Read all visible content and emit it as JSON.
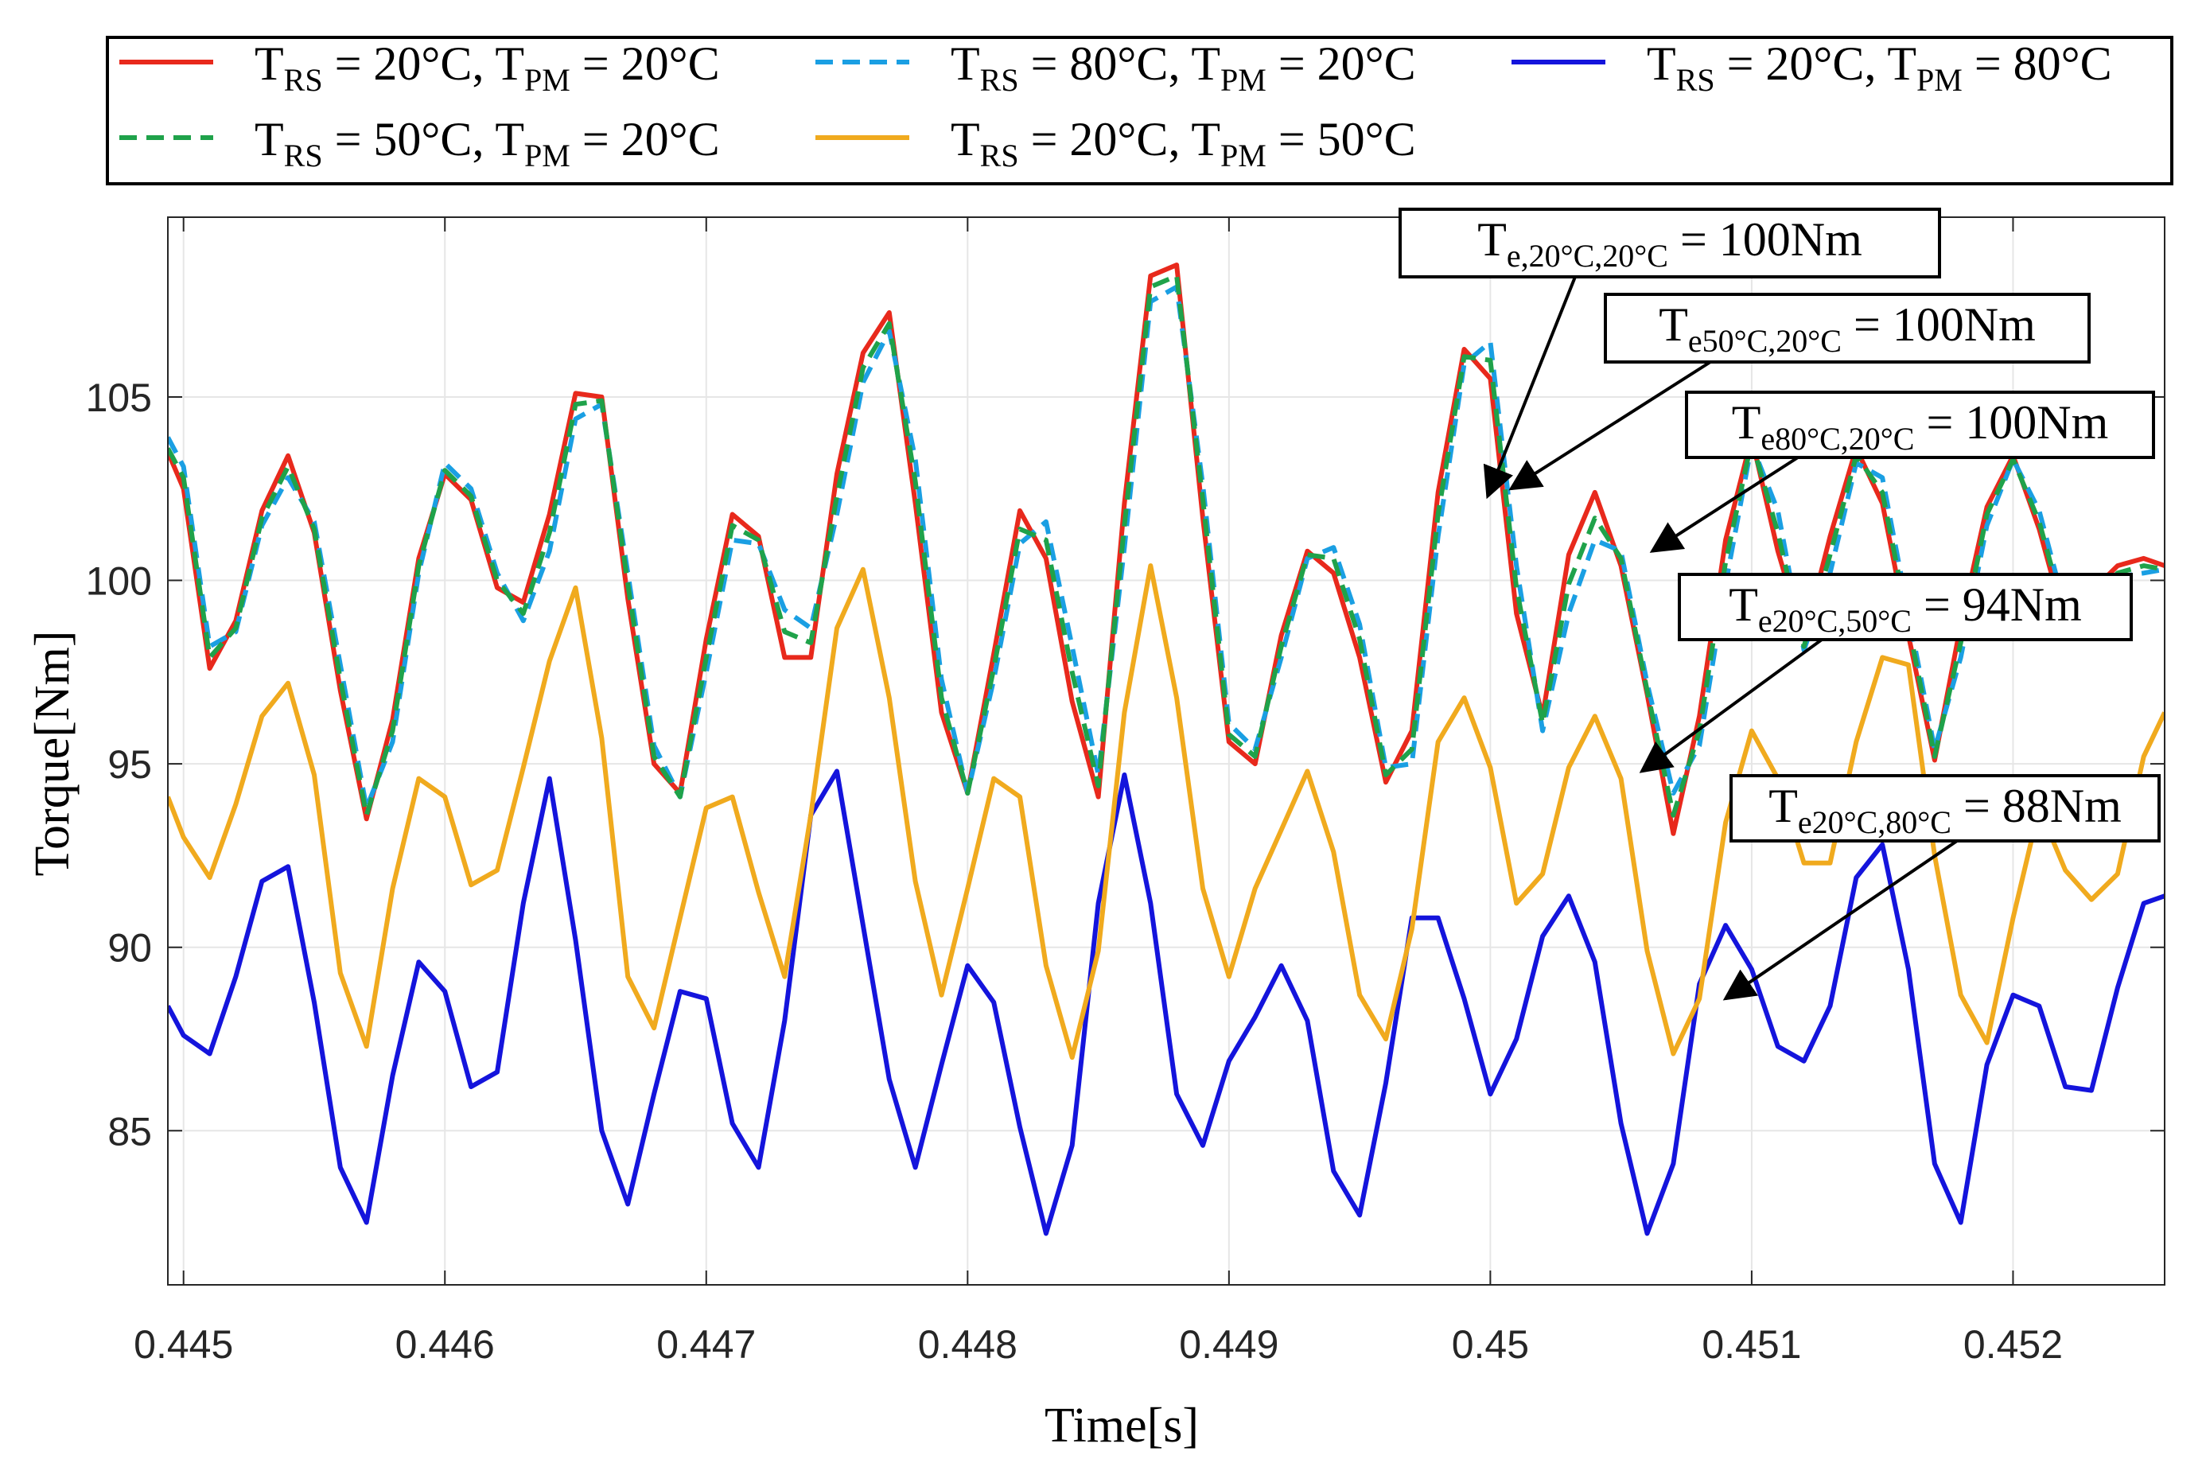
{
  "chart_data": {
    "type": "line",
    "xlabel": "Time[s]",
    "ylabel": "Torque[Nm]",
    "xlim": [
      0.44494,
      0.45258
    ],
    "ylim": [
      80.8,
      109.9
    ],
    "xticks": [
      0.445,
      0.446,
      0.447,
      0.448,
      0.449,
      0.45,
      0.451,
      0.452
    ],
    "xtick_labels": [
      "0.445",
      "0.446",
      "0.447",
      "0.448",
      "0.449",
      "0.45",
      "0.451",
      "0.452"
    ],
    "yticks": [
      85,
      90,
      95,
      100,
      105
    ],
    "ytick_labels": [
      "85",
      "90",
      "95",
      "100",
      "105"
    ],
    "grid": true,
    "legend_position": "top",
    "series": [
      {
        "name": "rs20_pm20",
        "legend": {
          "a": "T",
          "a_sub": "RS",
          "b": " = 20°C, T",
          "b_sub": "PM",
          "c": " = 20°C"
        },
        "color": "#e8291c",
        "dash": "solid",
        "x": [
          0.44494,
          0.445,
          0.4451,
          0.4452,
          0.4453,
          0.4454,
          0.4455,
          0.4456,
          0.4457,
          0.4458,
          0.4459,
          0.446,
          0.4461,
          0.4462,
          0.4463,
          0.4464,
          0.4465,
          0.4466,
          0.4467,
          0.4468,
          0.4469,
          0.447,
          0.4471,
          0.4472,
          0.4473,
          0.4474,
          0.4475,
          0.4476,
          0.4477,
          0.4478,
          0.4479,
          0.448,
          0.4481,
          0.4482,
          0.4483,
          0.4484,
          0.4485,
          0.4486,
          0.4487,
          0.4488,
          0.4489,
          0.449,
          0.4491,
          0.4492,
          0.4493,
          0.4494,
          0.4495,
          0.4496,
          0.4497,
          0.4498,
          0.4499,
          0.45,
          0.4501,
          0.4502,
          0.4503,
          0.4504,
          0.4505,
          0.4506,
          0.4507,
          0.4508,
          0.4509,
          0.451,
          0.4511,
          0.4512,
          0.4513,
          0.4514,
          0.4515,
          0.4516,
          0.4517,
          0.4518,
          0.4519,
          0.452,
          0.4521,
          0.4522,
          0.4523,
          0.4524,
          0.4525,
          0.45258
        ],
        "values": [
          103.5,
          102.5,
          97.6,
          98.9,
          101.9,
          103.4,
          101.3,
          97.0,
          93.5,
          96.2,
          100.6,
          102.9,
          102.2,
          99.8,
          99.4,
          101.8,
          105.1,
          105.0,
          99.5,
          95.0,
          94.2,
          98.4,
          101.8,
          101.2,
          97.9,
          97.9,
          102.9,
          106.2,
          107.3,
          102.1,
          96.4,
          94.2,
          98.0,
          101.9,
          100.6,
          96.7,
          94.1,
          102.1,
          108.3,
          108.6,
          101.7,
          95.6,
          95.0,
          98.5,
          100.8,
          100.2,
          97.9,
          94.5,
          95.9,
          102.4,
          106.3,
          105.5,
          99.1,
          96.3,
          100.7,
          102.4,
          100.4,
          96.9,
          93.1,
          96.3,
          101.1,
          103.9,
          100.8,
          98.4,
          101.2,
          103.6,
          102.1,
          98.5,
          95.1,
          98.8,
          102.0,
          103.4,
          101.4,
          98.8,
          99.7,
          100.4,
          100.6,
          100.4
        ]
      },
      {
        "name": "rs80_pm20",
        "legend": {
          "a": "T",
          "a_sub": "RS",
          "b": " = 80°C, T",
          "b_sub": "PM",
          "c": " = 20°C"
        },
        "color": "#1a9fe3",
        "dash": "dashed",
        "x": [
          0.44494,
          0.445,
          0.4451,
          0.4452,
          0.4453,
          0.4454,
          0.4455,
          0.4456,
          0.4457,
          0.4458,
          0.4459,
          0.446,
          0.4461,
          0.4462,
          0.4463,
          0.4464,
          0.4465,
          0.4466,
          0.4467,
          0.4468,
          0.4469,
          0.447,
          0.4471,
          0.4472,
          0.4473,
          0.4474,
          0.4475,
          0.4476,
          0.4477,
          0.4478,
          0.4479,
          0.448,
          0.4481,
          0.4482,
          0.4483,
          0.4484,
          0.4485,
          0.4486,
          0.4487,
          0.4488,
          0.4489,
          0.449,
          0.4491,
          0.4492,
          0.4493,
          0.4494,
          0.4495,
          0.4496,
          0.4497,
          0.4498,
          0.4499,
          0.45,
          0.4501,
          0.4502,
          0.4503,
          0.4504,
          0.4505,
          0.4506,
          0.4507,
          0.4508,
          0.4509,
          0.451,
          0.4511,
          0.4512,
          0.4513,
          0.4514,
          0.4515,
          0.4516,
          0.4517,
          0.4518,
          0.4519,
          0.452,
          0.4521,
          0.4522,
          0.4523,
          0.4524,
          0.4525,
          0.45258
        ],
        "values": [
          103.9,
          103.1,
          98.2,
          98.6,
          101.5,
          102.8,
          101.6,
          97.7,
          93.8,
          95.6,
          100.2,
          103.2,
          102.5,
          100.2,
          98.9,
          100.8,
          104.4,
          104.8,
          100.2,
          95.5,
          94.1,
          97.5,
          101.1,
          101.0,
          99.2,
          98.7,
          101.8,
          105.4,
          106.8,
          103.3,
          97.3,
          94.2,
          97.3,
          101.0,
          101.6,
          98.2,
          94.7,
          100.9,
          107.6,
          108.0,
          102.6,
          96.1,
          95.4,
          97.9,
          100.6,
          100.9,
          98.8,
          94.9,
          95.0,
          101.2,
          105.9,
          106.5,
          100.4,
          95.9,
          99.1,
          101.1,
          100.8,
          97.2,
          94.2,
          95.5,
          99.9,
          103.7,
          101.9,
          98.1,
          100.2,
          103.2,
          102.8,
          99.1,
          95.4,
          97.9,
          101.5,
          103.3,
          101.9,
          99.2,
          99.4,
          100.1,
          100.2,
          100.3
        ]
      },
      {
        "name": "rs20_pm80",
        "legend": {
          "a": "T",
          "a_sub": "RS",
          "b": " = 20°C, T",
          "b_sub": "PM",
          "c": " = 80°C"
        },
        "color": "#1414dc",
        "dash": "solid",
        "x": [
          0.44494,
          0.445,
          0.4451,
          0.4452,
          0.4453,
          0.4454,
          0.4455,
          0.4456,
          0.4457,
          0.4458,
          0.4459,
          0.446,
          0.4461,
          0.4462,
          0.4463,
          0.4464,
          0.4465,
          0.4466,
          0.4467,
          0.4468,
          0.4469,
          0.447,
          0.4471,
          0.4472,
          0.4473,
          0.4474,
          0.4475,
          0.4476,
          0.4477,
          0.4478,
          0.4479,
          0.448,
          0.4481,
          0.4482,
          0.4483,
          0.4484,
          0.4485,
          0.4486,
          0.4487,
          0.4488,
          0.4489,
          0.449,
          0.4491,
          0.4492,
          0.4493,
          0.4494,
          0.4495,
          0.4496,
          0.4497,
          0.4498,
          0.4499,
          0.45,
          0.4501,
          0.4502,
          0.4503,
          0.4504,
          0.4505,
          0.4506,
          0.4507,
          0.4508,
          0.4509,
          0.451,
          0.4511,
          0.4512,
          0.4513,
          0.4514,
          0.4515,
          0.4516,
          0.4517,
          0.4518,
          0.4519,
          0.452,
          0.4521,
          0.4522,
          0.4523,
          0.4524,
          0.4525,
          0.45258
        ],
        "values": [
          88.4,
          87.6,
          87.1,
          89.2,
          91.8,
          92.2,
          88.5,
          84.0,
          82.5,
          86.5,
          89.6,
          88.8,
          86.2,
          86.6,
          91.2,
          94.6,
          90.2,
          85.0,
          83.0,
          86.0,
          88.8,
          88.6,
          85.2,
          84.0,
          88.0,
          93.6,
          94.8,
          90.6,
          86.4,
          84.0,
          86.8,
          89.5,
          88.5,
          85.1,
          82.2,
          84.6,
          91.2,
          94.7,
          91.2,
          86.0,
          84.6,
          86.9,
          88.1,
          89.5,
          88.0,
          83.9,
          82.7,
          86.3,
          90.8,
          90.8,
          88.6,
          86.0,
          87.5,
          90.3,
          91.4,
          89.6,
          85.2,
          82.2,
          84.1,
          89.0,
          90.6,
          89.4,
          87.3,
          86.9,
          88.4,
          91.9,
          92.8,
          89.4,
          84.1,
          82.5,
          86.8,
          88.7,
          88.4,
          86.2,
          86.1,
          88.9,
          91.2,
          91.4
        ]
      },
      {
        "name": "rs50_pm20",
        "legend": {
          "a": "T",
          "a_sub": "RS",
          "b": " = 50°C, T",
          "b_sub": "PM",
          "c": " = 20°C"
        },
        "color": "#1fa24a",
        "dash": "dashed",
        "x": [
          0.44494,
          0.445,
          0.4451,
          0.4452,
          0.4453,
          0.4454,
          0.4455,
          0.4456,
          0.4457,
          0.4458,
          0.4459,
          0.446,
          0.4461,
          0.4462,
          0.4463,
          0.4464,
          0.4465,
          0.4466,
          0.4467,
          0.4468,
          0.4469,
          0.447,
          0.4471,
          0.4472,
          0.4473,
          0.4474,
          0.4475,
          0.4476,
          0.4477,
          0.4478,
          0.4479,
          0.448,
          0.4481,
          0.4482,
          0.4483,
          0.4484,
          0.4485,
          0.4486,
          0.4487,
          0.4488,
          0.4489,
          0.449,
          0.4491,
          0.4492,
          0.4493,
          0.4494,
          0.4495,
          0.4496,
          0.4497,
          0.4498,
          0.4499,
          0.45,
          0.4501,
          0.4502,
          0.4503,
          0.4504,
          0.4505,
          0.4506,
          0.4507,
          0.4508,
          0.4509,
          0.451,
          0.4511,
          0.4512,
          0.4513,
          0.4514,
          0.4515,
          0.4516,
          0.4517,
          0.4518,
          0.4519,
          0.452,
          0.4521,
          0.4522,
          0.4523,
          0.4524,
          0.4525,
          0.45258
        ],
        "values": [
          103.6,
          102.8,
          97.9,
          98.7,
          101.7,
          103.1,
          101.4,
          97.3,
          93.6,
          95.9,
          100.4,
          103.0,
          102.3,
          100.0,
          99.1,
          101.3,
          104.8,
          104.9,
          99.9,
          95.2,
          94.1,
          97.9,
          101.5,
          101.1,
          98.6,
          98.3,
          102.3,
          105.8,
          107.0,
          102.7,
          96.8,
          94.2,
          97.6,
          101.4,
          101.1,
          97.5,
          94.4,
          101.5,
          108.0,
          108.3,
          102.2,
          95.8,
          95.2,
          98.2,
          100.7,
          100.6,
          98.4,
          94.7,
          95.4,
          101.8,
          106.1,
          106.0,
          99.8,
          96.1,
          99.9,
          101.7,
          100.6,
          97.0,
          93.6,
          95.9,
          100.5,
          103.8,
          101.3,
          98.2,
          100.7,
          103.4,
          102.4,
          98.8,
          95.2,
          98.3,
          101.8,
          103.3,
          101.6,
          99.0,
          99.5,
          100.2,
          100.4,
          100.3
        ]
      },
      {
        "name": "rs20_pm50",
        "legend": {
          "a": "T",
          "a_sub": "RS",
          "b": " = 20°C, T",
          "b_sub": "PM",
          "c": " = 50°C"
        },
        "color": "#f0aa1e",
        "dash": "solid",
        "x": [
          0.44494,
          0.445,
          0.4451,
          0.4452,
          0.4453,
          0.4454,
          0.4455,
          0.4456,
          0.4457,
          0.4458,
          0.4459,
          0.446,
          0.4461,
          0.4462,
          0.4463,
          0.4464,
          0.4465,
          0.4466,
          0.4467,
          0.4468,
          0.4469,
          0.447,
          0.4471,
          0.4472,
          0.4473,
          0.4474,
          0.4475,
          0.4476,
          0.4477,
          0.4478,
          0.4479,
          0.448,
          0.4481,
          0.4482,
          0.4483,
          0.4484,
          0.4485,
          0.4486,
          0.4487,
          0.4488,
          0.4489,
          0.449,
          0.4491,
          0.4492,
          0.4493,
          0.4494,
          0.4495,
          0.4496,
          0.4497,
          0.4498,
          0.4499,
          0.45,
          0.4501,
          0.4502,
          0.4503,
          0.4504,
          0.4505,
          0.4506,
          0.4507,
          0.4508,
          0.4509,
          0.451,
          0.4511,
          0.4512,
          0.4513,
          0.4514,
          0.4515,
          0.4516,
          0.4517,
          0.4518,
          0.4519,
          0.452,
          0.4521,
          0.4522,
          0.4523,
          0.4524,
          0.4525,
          0.45258
        ],
        "values": [
          94.1,
          93.0,
          91.9,
          93.9,
          96.3,
          97.2,
          94.7,
          89.3,
          87.3,
          91.6,
          94.6,
          94.1,
          91.7,
          92.1,
          94.9,
          97.8,
          99.8,
          95.7,
          89.2,
          87.8,
          90.8,
          93.8,
          94.1,
          91.5,
          89.2,
          93.6,
          98.7,
          100.3,
          96.8,
          91.8,
          88.7,
          91.6,
          94.6,
          94.1,
          89.5,
          87.0,
          89.9,
          96.4,
          100.4,
          96.8,
          91.6,
          89.2,
          91.6,
          93.2,
          94.8,
          92.6,
          88.7,
          87.5,
          90.5,
          95.6,
          96.8,
          94.9,
          91.2,
          92.0,
          94.9,
          96.3,
          94.6,
          89.9,
          87.1,
          88.6,
          93.4,
          95.9,
          94.6,
          92.3,
          92.3,
          95.6,
          97.9,
          97.7,
          92.5,
          88.7,
          87.4,
          90.8,
          93.8,
          92.1,
          91.3,
          92.0,
          95.2,
          96.4
        ]
      }
    ],
    "annotations": [
      {
        "main": "T",
        "sub": "e,20°C,20°C",
        "rest": " = 100Nm",
        "target": [
          0.44999,
          102.3
        ]
      },
      {
        "main": "T",
        "sub": "e50°C,20°C",
        "rest": " = 100Nm",
        "target": [
          0.45008,
          102.5
        ]
      },
      {
        "main": "T",
        "sub": "e80°C,20°C",
        "rest": " = 100Nm",
        "target": [
          0.45062,
          100.8
        ]
      },
      {
        "main": "T",
        "sub": "e20°C,50°C",
        "rest": " = 94Nm",
        "target": [
          0.45058,
          94.8
        ]
      },
      {
        "main": "T",
        "sub": "e20°C,80°C",
        "rest": " = 88Nm",
        "target": [
          0.4509,
          88.6
        ]
      }
    ]
  }
}
